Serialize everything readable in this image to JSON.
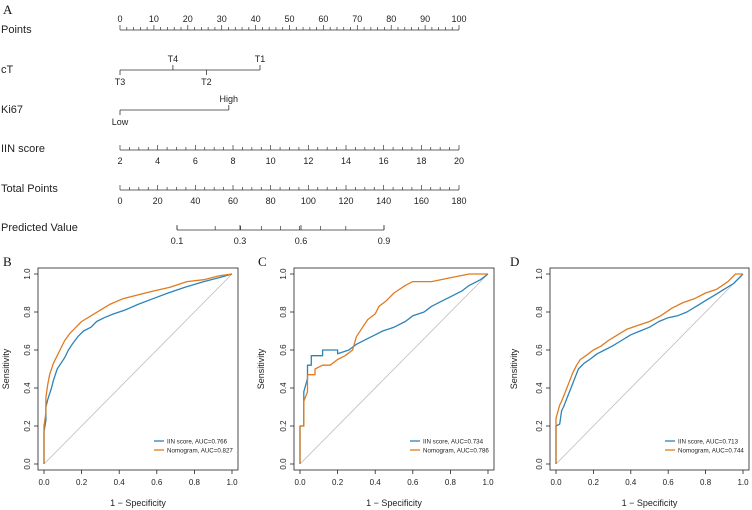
{
  "figure": {
    "panel_letters": [
      "A",
      "B",
      "C",
      "D"
    ]
  },
  "chart_data": [
    {
      "type": "nomogram",
      "panel": "A",
      "title": "",
      "rows": [
        {
          "name": "Points",
          "ticks": [
            {
              "value": 0,
              "label": "0"
            },
            {
              "value": 10,
              "label": "10"
            },
            {
              "value": 20,
              "label": "20"
            },
            {
              "value": 30,
              "label": "30"
            },
            {
              "value": 40,
              "label": "40"
            },
            {
              "value": 50,
              "label": "50"
            },
            {
              "value": 60,
              "label": "60"
            },
            {
              "value": 70,
              "label": "70"
            },
            {
              "value": 80,
              "label": "80"
            },
            {
              "value": 90,
              "label": "90"
            },
            {
              "value": 100,
              "label": "100"
            }
          ]
        },
        {
          "name": "cT",
          "ticks": [
            {
              "value": 0,
              "label": "T3",
              "side": "below"
            },
            {
              "value": 15.6,
              "label": "T4",
              "side": "above"
            },
            {
              "value": 25.5,
              "label": "T2",
              "side": "below"
            },
            {
              "value": 41.3,
              "label": "T1",
              "side": "above"
            }
          ]
        },
        {
          "name": "Ki67",
          "ticks": [
            {
              "value": 0,
              "label": "Low",
              "side": "below"
            },
            {
              "value": 32.1,
              "label": "High",
              "side": "above"
            }
          ]
        },
        {
          "name": "IIN score",
          "ticks": [
            {
              "value": 2,
              "label": "2"
            },
            {
              "value": 4,
              "label": "4"
            },
            {
              "value": 6,
              "label": "6"
            },
            {
              "value": 8,
              "label": "8"
            },
            {
              "value": 10,
              "label": "10"
            },
            {
              "value": 12,
              "label": "12"
            },
            {
              "value": 14,
              "label": "14"
            },
            {
              "value": 16,
              "label": "16"
            },
            {
              "value": 18,
              "label": "18"
            },
            {
              "value": 20,
              "label": "20"
            }
          ]
        },
        {
          "name": "Total Points",
          "ticks": [
            {
              "value": 0,
              "label": "0"
            },
            {
              "value": 20,
              "label": "20"
            },
            {
              "value": 40,
              "label": "40"
            },
            {
              "value": 60,
              "label": "60"
            },
            {
              "value": 80,
              "label": "80"
            },
            {
              "value": 100,
              "label": "100"
            },
            {
              "value": 120,
              "label": "120"
            },
            {
              "value": 140,
              "label": "140"
            },
            {
              "value": 160,
              "label": "160"
            },
            {
              "value": 180,
              "label": "180"
            }
          ]
        },
        {
          "name": "Predicted Value",
          "ticks": [
            {
              "value": 0.1,
              "label": "0.1"
            },
            {
              "value": 0.3,
              "label": "0.3"
            },
            {
              "value": 0.6,
              "label": "0.6"
            },
            {
              "value": 0.9,
              "label": "0.9"
            }
          ]
        }
      ]
    },
    {
      "type": "line",
      "panel": "B",
      "xlabel": "1 − Specificity",
      "ylabel": "Sensitivity",
      "xlim": [
        0,
        1
      ],
      "ylim": [
        0,
        1
      ],
      "ticks": [
        "0.0",
        "0.2",
        "0.4",
        "0.6",
        "0.8",
        "1.0"
      ],
      "series": [
        {
          "name": "IIN score, AUC=0.766",
          "color": "#2b83ba",
          "x": [
            0,
            0,
            0.01,
            0.01,
            0.02,
            0.03,
            0.04,
            0.05,
            0.07,
            0.09,
            0.11,
            0.13,
            0.15,
            0.18,
            0.21,
            0.25,
            0.28,
            0.32,
            0.37,
            0.43,
            0.5,
            0.58,
            0.66,
            0.75,
            0.85,
            0.93,
            1
          ],
          "y": [
            0,
            0.17,
            0.23,
            0.3,
            0.34,
            0.37,
            0.4,
            0.44,
            0.5,
            0.53,
            0.56,
            0.6,
            0.63,
            0.67,
            0.7,
            0.72,
            0.75,
            0.77,
            0.79,
            0.81,
            0.84,
            0.87,
            0.9,
            0.93,
            0.96,
            0.98,
            1
          ]
        },
        {
          "name": "Nomogram, AUC=0.827",
          "color": "#e07b1f",
          "x": [
            0,
            0,
            0.01,
            0.01,
            0.02,
            0.03,
            0.04,
            0.05,
            0.07,
            0.09,
            0.11,
            0.14,
            0.17,
            0.2,
            0.25,
            0.3,
            0.35,
            0.42,
            0.5,
            0.58,
            0.67,
            0.76,
            0.85,
            0.93,
            1
          ],
          "y": [
            0,
            0.2,
            0.27,
            0.35,
            0.42,
            0.47,
            0.5,
            0.53,
            0.57,
            0.61,
            0.65,
            0.69,
            0.72,
            0.75,
            0.78,
            0.81,
            0.84,
            0.87,
            0.89,
            0.91,
            0.93,
            0.96,
            0.97,
            0.99,
            1
          ]
        }
      ],
      "legend": "bottom-right"
    },
    {
      "type": "line",
      "panel": "C",
      "xlabel": "1 − Specificity",
      "ylabel": "Sensitivity",
      "xlim": [
        0,
        1
      ],
      "ylim": [
        0,
        1
      ],
      "ticks": [
        "0.0",
        "0.2",
        "0.4",
        "0.6",
        "0.8",
        "1.0"
      ],
      "series": [
        {
          "name": "IIN score, AUC=0.734",
          "color": "#2b83ba",
          "x": [
            0,
            0,
            0.02,
            0.02,
            0.04,
            0.04,
            0.06,
            0.06,
            0.12,
            0.12,
            0.2,
            0.2,
            0.26,
            0.3,
            0.36,
            0.4,
            0.44,
            0.5,
            0.56,
            0.6,
            0.66,
            0.7,
            0.76,
            0.8,
            0.86,
            0.9,
            0.96,
            1
          ],
          "y": [
            0,
            0.2,
            0.2,
            0.38,
            0.45,
            0.52,
            0.52,
            0.57,
            0.57,
            0.6,
            0.6,
            0.58,
            0.6,
            0.63,
            0.66,
            0.68,
            0.7,
            0.72,
            0.75,
            0.78,
            0.8,
            0.83,
            0.86,
            0.88,
            0.91,
            0.94,
            0.97,
            1
          ]
        },
        {
          "name": "Nomogram, AUC=0.786",
          "color": "#e07b1f",
          "x": [
            0,
            0,
            0.02,
            0.02,
            0.04,
            0.04,
            0.08,
            0.08,
            0.12,
            0.16,
            0.2,
            0.24,
            0.28,
            0.3,
            0.34,
            0.36,
            0.4,
            0.42,
            0.46,
            0.5,
            0.56,
            0.6,
            0.7,
            0.8,
            0.9,
            1
          ],
          "y": [
            0,
            0.2,
            0.2,
            0.33,
            0.38,
            0.47,
            0.47,
            0.5,
            0.52,
            0.52,
            0.55,
            0.57,
            0.6,
            0.67,
            0.73,
            0.76,
            0.79,
            0.83,
            0.86,
            0.9,
            0.94,
            0.96,
            0.96,
            0.98,
            1,
            1
          ]
        }
      ],
      "legend": "bottom-right"
    },
    {
      "type": "line",
      "panel": "D",
      "xlabel": "1 − Specificity",
      "ylabel": "Sensitivity",
      "xlim": [
        0,
        1
      ],
      "ylim": [
        0,
        1
      ],
      "ticks": [
        "0.0",
        "0.2",
        "0.4",
        "0.6",
        "0.8",
        "1.0"
      ],
      "series": [
        {
          "name": "IIN score, AUC=0.713",
          "color": "#2b83ba",
          "x": [
            0,
            0,
            0.02,
            0.03,
            0.04,
            0.06,
            0.08,
            0.1,
            0.12,
            0.15,
            0.18,
            0.22,
            0.26,
            0.3,
            0.35,
            0.4,
            0.45,
            0.5,
            0.55,
            0.6,
            0.65,
            0.7,
            0.75,
            0.8,
            0.85,
            0.9,
            0.95,
            1
          ],
          "y": [
            0,
            0.2,
            0.21,
            0.28,
            0.3,
            0.35,
            0.4,
            0.45,
            0.5,
            0.53,
            0.55,
            0.58,
            0.6,
            0.62,
            0.65,
            0.68,
            0.7,
            0.72,
            0.75,
            0.77,
            0.78,
            0.8,
            0.83,
            0.86,
            0.89,
            0.92,
            0.95,
            1
          ]
        },
        {
          "name": "Nomogram, AUC=0.744",
          "color": "#e07b1f",
          "x": [
            0,
            0,
            0.02,
            0.03,
            0.05,
            0.07,
            0.09,
            0.11,
            0.13,
            0.16,
            0.2,
            0.24,
            0.28,
            0.33,
            0.38,
            0.44,
            0.5,
            0.56,
            0.62,
            0.68,
            0.74,
            0.8,
            0.86,
            0.92,
            0.96,
            1
          ],
          "y": [
            0,
            0.24,
            0.31,
            0.33,
            0.38,
            0.43,
            0.48,
            0.52,
            0.55,
            0.57,
            0.6,
            0.62,
            0.65,
            0.68,
            0.71,
            0.73,
            0.75,
            0.78,
            0.82,
            0.85,
            0.87,
            0.9,
            0.92,
            0.96,
            1,
            1
          ]
        }
      ],
      "legend": "bottom-right"
    }
  ]
}
